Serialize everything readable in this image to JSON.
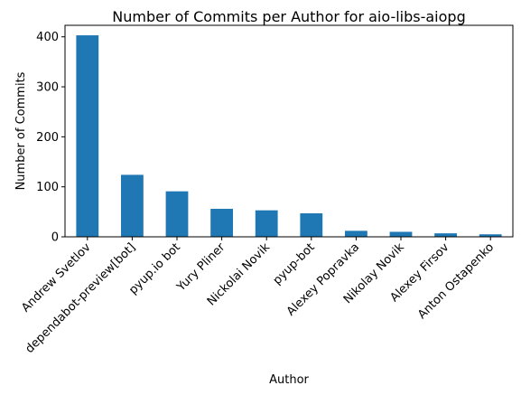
{
  "chart_data": {
    "type": "bar",
    "title": "Number of Commits per Author for aio-libs-aiopg",
    "xlabel": "Author",
    "ylabel": "Number of Commits",
    "categories": [
      "Andrew Svetlov",
      "dependabot-preview[bot]",
      "pyup.io bot",
      "Yury Pliner",
      "Nickolai Novik",
      "pyup-bot",
      "Alexey Popravka",
      "Nikolay Novik",
      "Alexey Firsov",
      "Anton Ostapenko"
    ],
    "values": [
      403,
      124,
      91,
      56,
      53,
      47,
      12,
      10,
      7,
      5
    ],
    "ylim": [
      0,
      423
    ],
    "yticks": [
      0,
      100,
      200,
      300,
      400
    ],
    "grid": false,
    "bar_color": "#1f77b4"
  }
}
